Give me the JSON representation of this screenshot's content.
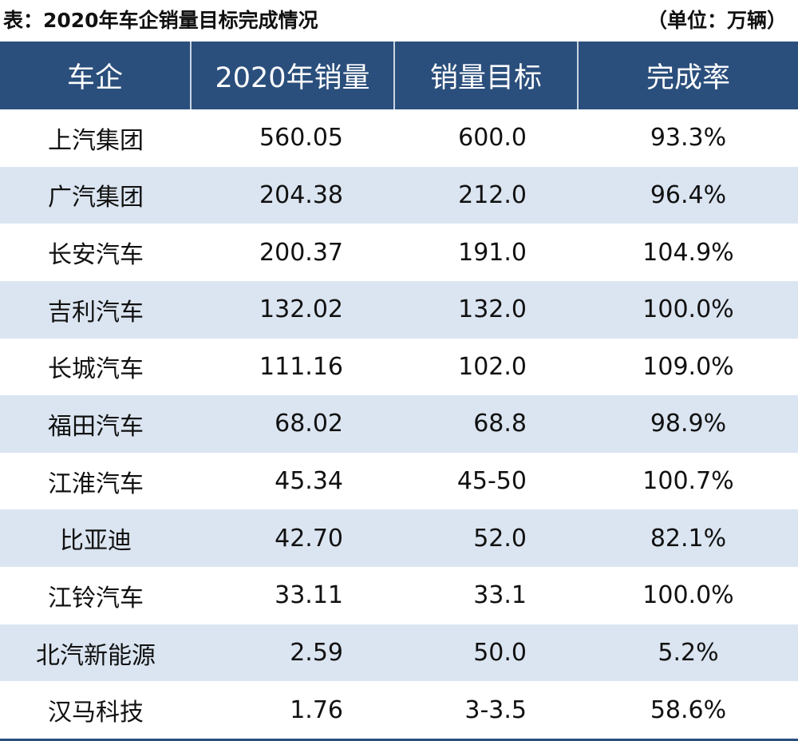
{
  "header": {
    "title": "表：2020年车企销量目标完成情况",
    "unit": "（单位：万辆）"
  },
  "table": {
    "columns": [
      "车企",
      "2020年销量",
      "销量目标",
      "完成率"
    ],
    "rows": [
      [
        "上汽集团",
        "560.05",
        "600.0",
        "93.3%"
      ],
      [
        "广汽集团",
        "204.38",
        "212.0",
        "96.4%"
      ],
      [
        "长安汽车",
        "200.37",
        "191.0",
        "104.9%"
      ],
      [
        "吉利汽车",
        "132.02",
        "132.0",
        "100.0%"
      ],
      [
        "长城汽车",
        "111.16",
        "102.0",
        "109.0%"
      ],
      [
        "福田汽车",
        "68.02",
        "68.8",
        "98.9%"
      ],
      [
        "江淮汽车",
        "45.34",
        "45-50",
        "100.7%"
      ],
      [
        "比亚迪",
        "42.70",
        "52.0",
        "82.1%"
      ],
      [
        "江铃汽车",
        "33.11",
        "33.1",
        "100.0%"
      ],
      [
        "北汽新能源",
        "2.59",
        "50.0",
        "5.2%"
      ],
      [
        "汉马科技",
        "1.76",
        "3-3.5",
        "58.6%"
      ]
    ]
  }
}
